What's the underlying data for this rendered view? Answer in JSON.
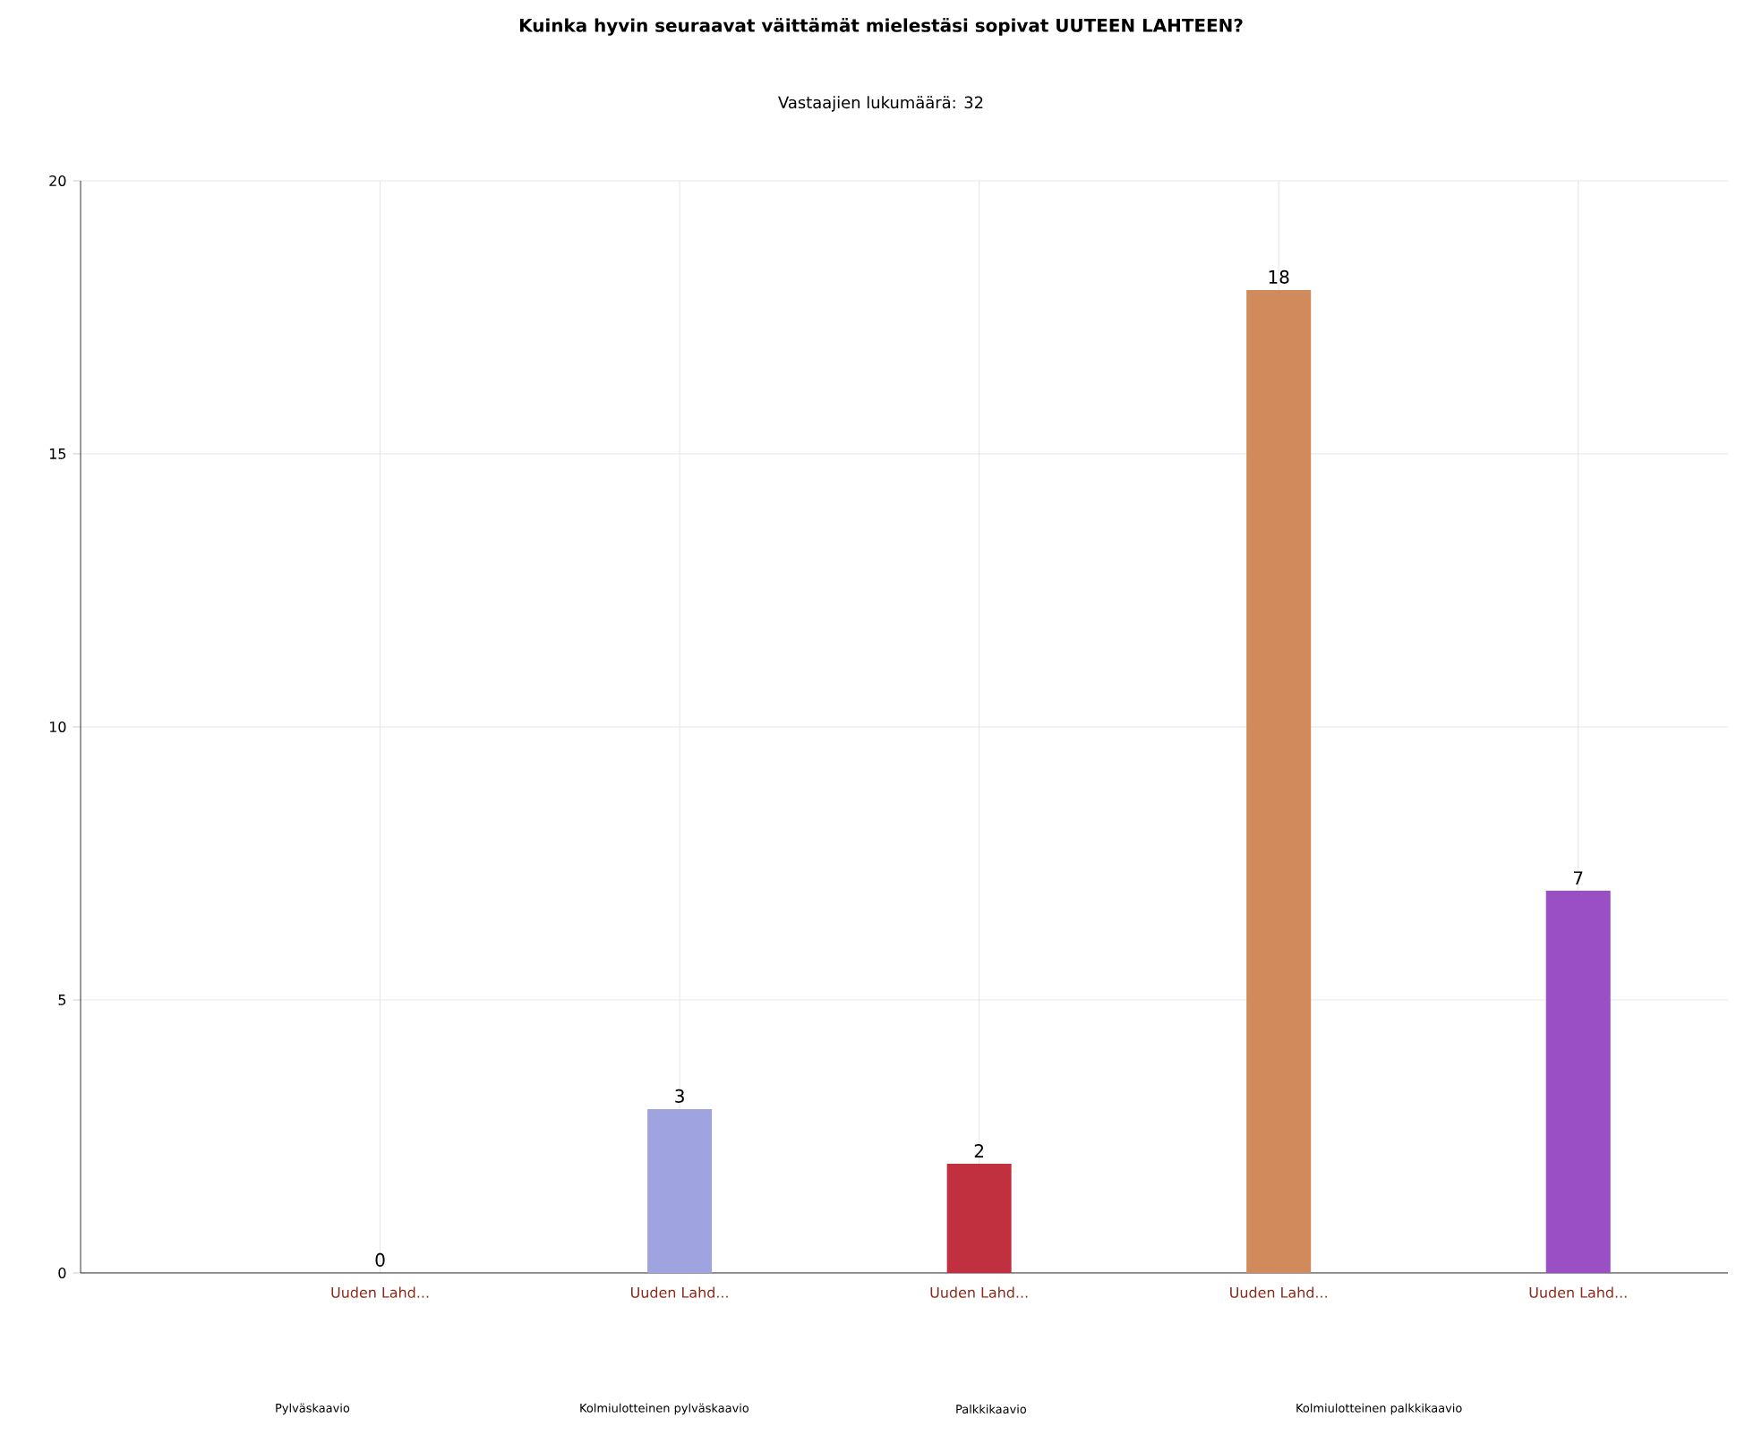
{
  "chart_data": {
    "type": "bar",
    "title": "Kuinka hyvin seuraavat väittämät mielestäsi sopivat UUTEEN LAHTEEN?",
    "subtitle": "Vastaajien lukumäärä: 32",
    "categories": [
      "Uuden Lahd...",
      "Uuden Lahd...",
      "Uuden Lahd...",
      "Uuden Lahd...",
      "Uuden Lahd..."
    ],
    "values": [
      0,
      3,
      2,
      18,
      7
    ],
    "colors": [
      "#9fa3e0",
      "#9fa3e0",
      "#c0303f",
      "#d08a5c",
      "#9a50c4"
    ],
    "ylim": [
      0,
      20
    ],
    "yticks": [
      0,
      5,
      10,
      15,
      20
    ],
    "grid": true,
    "data_labels": true,
    "annotations": [
      "Pylväskaavio",
      "Kolmiulotteinen pylväskaavio",
      "Palkkikaavio",
      "Kolmiulotteinen palkkikaavio"
    ]
  }
}
